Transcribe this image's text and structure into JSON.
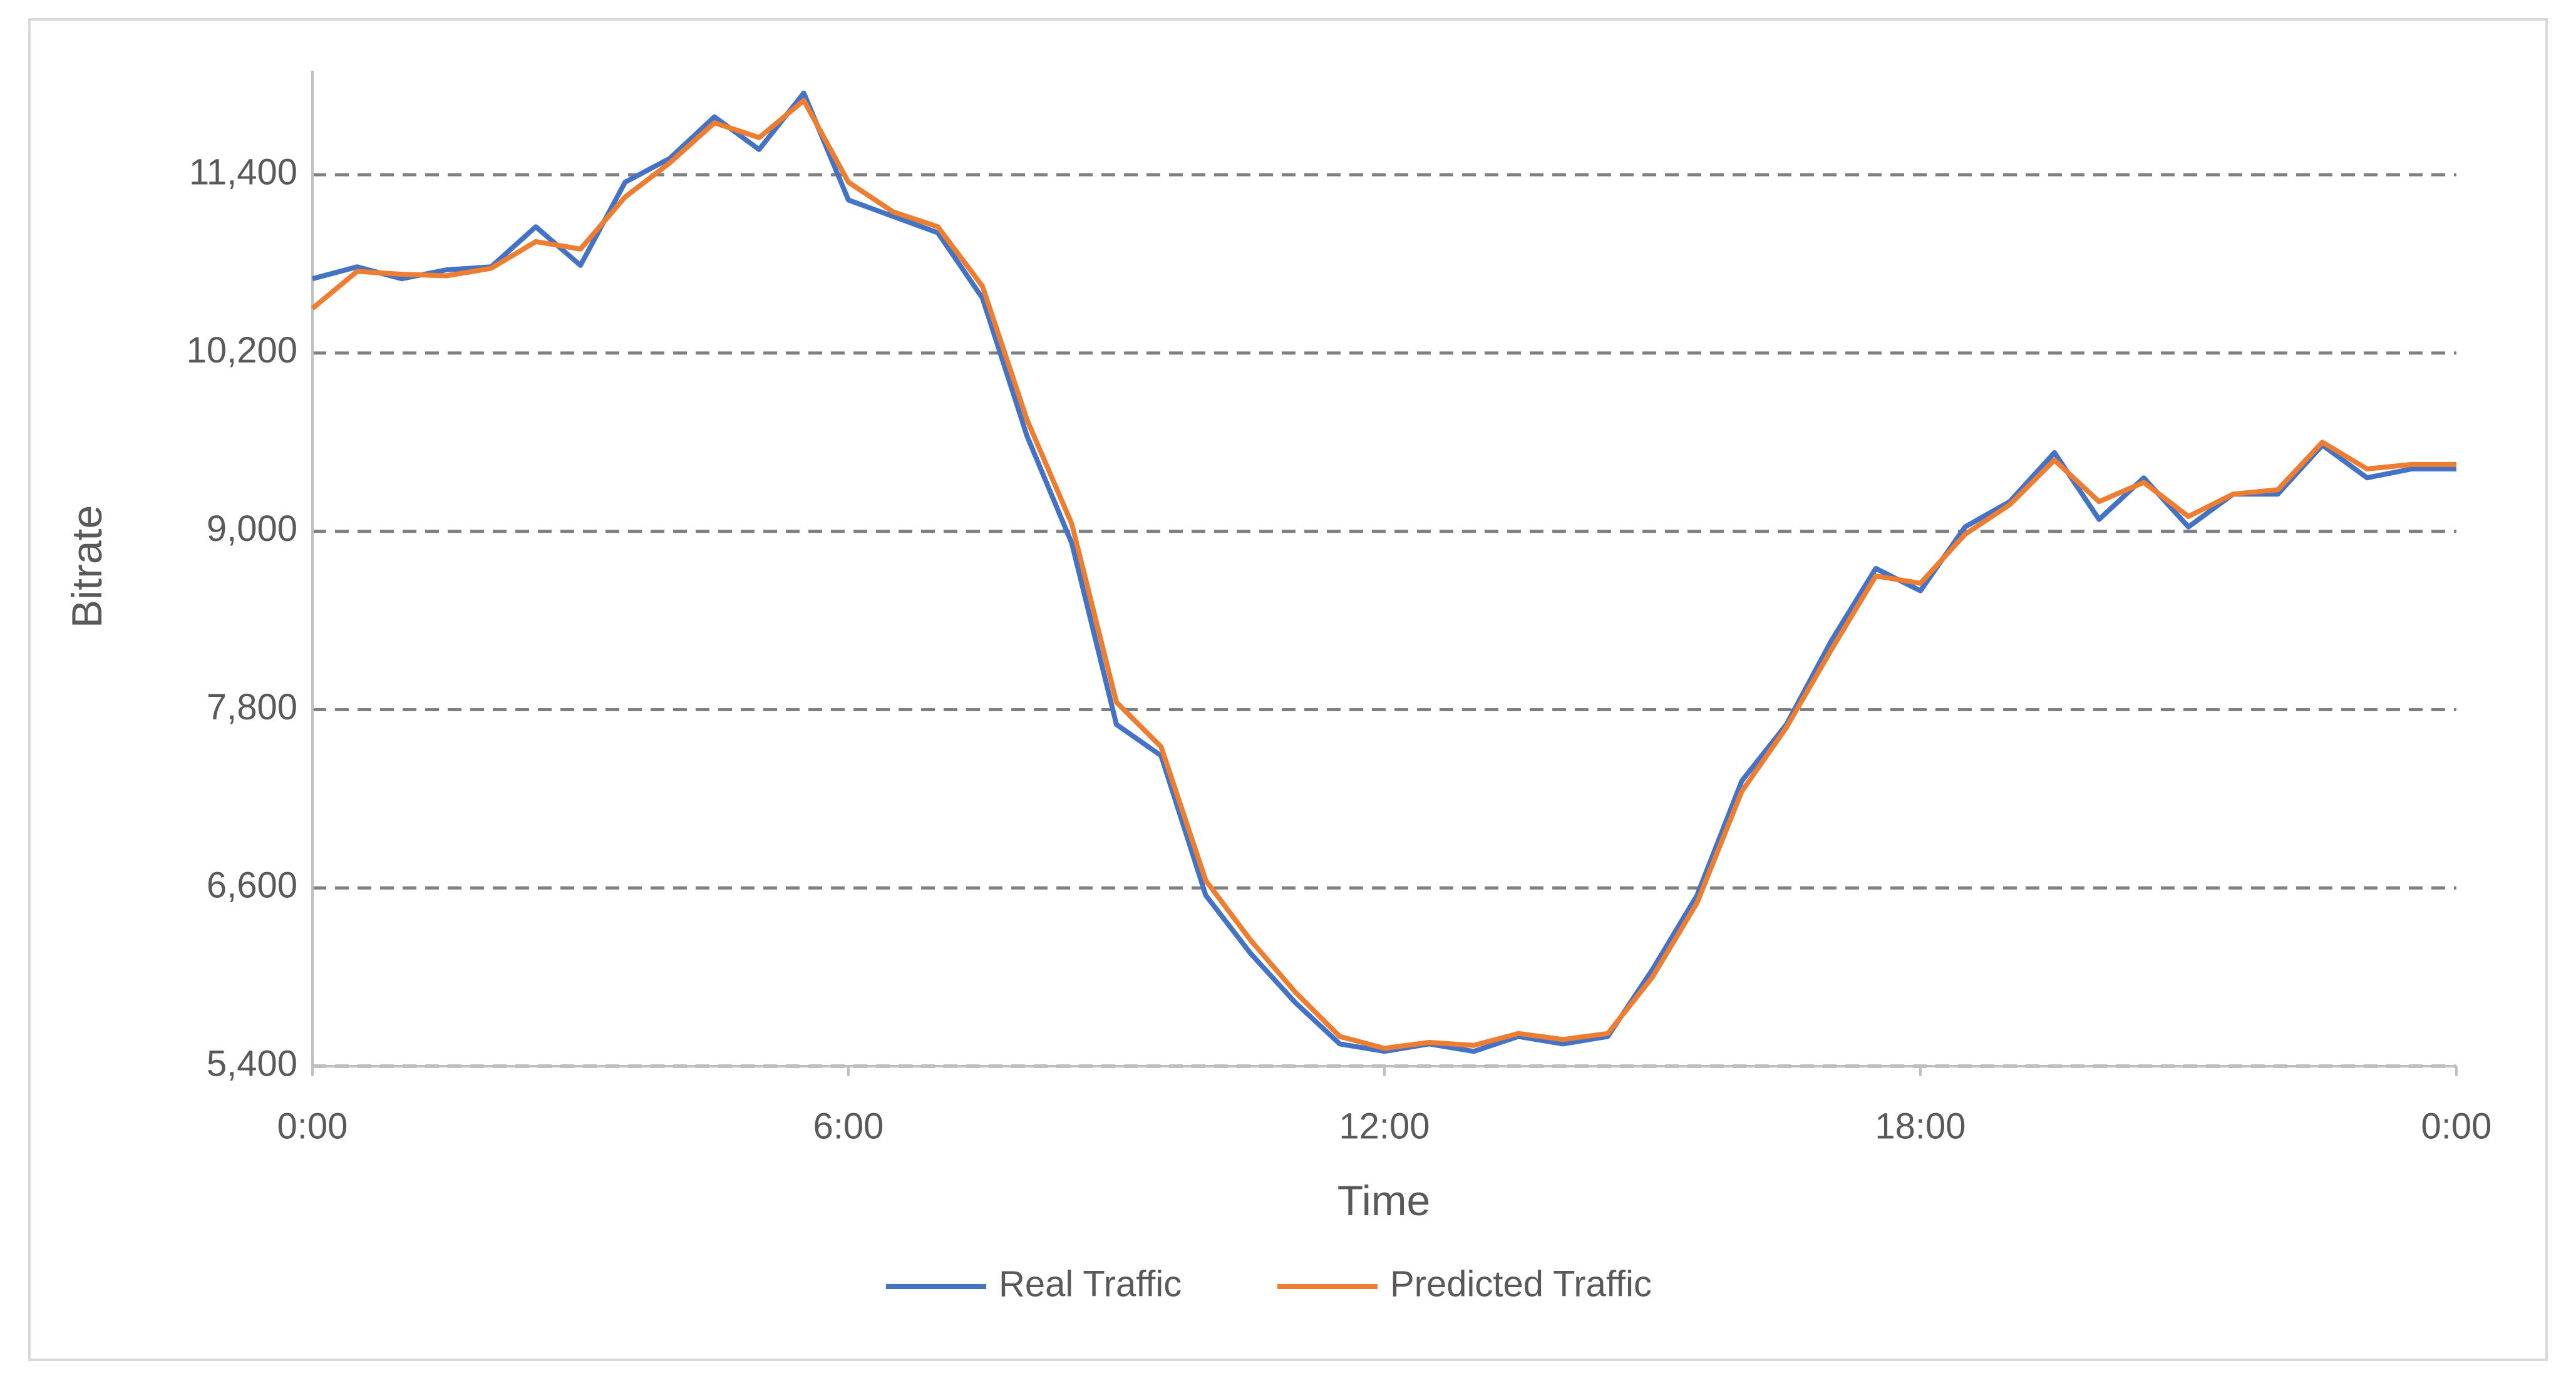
{
  "chart_data": {
    "type": "line",
    "x_label": "Time",
    "y_label": "Bitrate",
    "x": [
      0,
      0.5,
      1,
      1.5,
      2,
      2.5,
      3,
      3.5,
      4,
      4.5,
      5,
      5.5,
      6,
      6.5,
      7,
      7.5,
      8,
      8.5,
      9,
      9.5,
      10,
      10.5,
      11,
      11.5,
      12,
      12.5,
      13,
      13.5,
      14,
      14.5,
      15,
      15.5,
      16,
      16.5,
      17,
      17.5,
      18,
      18.5,
      19,
      19.5,
      20,
      20.5,
      21,
      21.5,
      22,
      22.5,
      23,
      23.5,
      24
    ],
    "series": [
      {
        "name": "Real Traffic",
        "color": "#4472c4",
        "values": [
          10700,
          10780,
          10700,
          10760,
          10780,
          11050,
          10790,
          11350,
          11510,
          11790,
          11570,
          11950,
          11230,
          11120,
          11010,
          10570,
          9640,
          8920,
          7700,
          7490,
          6550,
          6160,
          5830,
          5550,
          5500,
          5550,
          5500,
          5600,
          5550,
          5600,
          6050,
          6550,
          7320,
          7700,
          8260,
          8750,
          8600,
          9030,
          9200,
          9530,
          9080,
          9360,
          9030,
          9250,
          9250,
          9580,
          9360,
          9420,
          9420
        ]
      },
      {
        "name": "Predicted Traffic",
        "color": "#ed7d31",
        "values": [
          10500,
          10750,
          10730,
          10720,
          10770,
          10950,
          10900,
          11250,
          11480,
          11750,
          11650,
          11900,
          11350,
          11150,
          11050,
          10650,
          9750,
          9050,
          7850,
          7550,
          6650,
          6250,
          5900,
          5600,
          5520,
          5560,
          5540,
          5620,
          5580,
          5620,
          6000,
          6500,
          7250,
          7680,
          8200,
          8700,
          8650,
          8980,
          9180,
          9480,
          9200,
          9330,
          9100,
          9250,
          9280,
          9600,
          9420,
          9450,
          9450
        ]
      }
    ],
    "xlim": [
      0,
      24
    ],
    "xticks": [
      {
        "value": 0,
        "label": "0:00"
      },
      {
        "value": 6,
        "label": "6:00"
      },
      {
        "value": 12,
        "label": "12:00"
      },
      {
        "value": 18,
        "label": "18:00"
      },
      {
        "value": 24,
        "label": "0:00"
      }
    ],
    "ylim": [
      5400,
      12100
    ],
    "yticks": [
      {
        "value": 5400,
        "label": "5,400"
      },
      {
        "value": 6600,
        "label": "6,600"
      },
      {
        "value": 7800,
        "label": "7,800"
      },
      {
        "value": 9000,
        "label": "9,000"
      },
      {
        "value": 10200,
        "label": "10,200"
      },
      {
        "value": 11400,
        "label": "11,400"
      }
    ],
    "grid": true,
    "legend": "bottom"
  }
}
